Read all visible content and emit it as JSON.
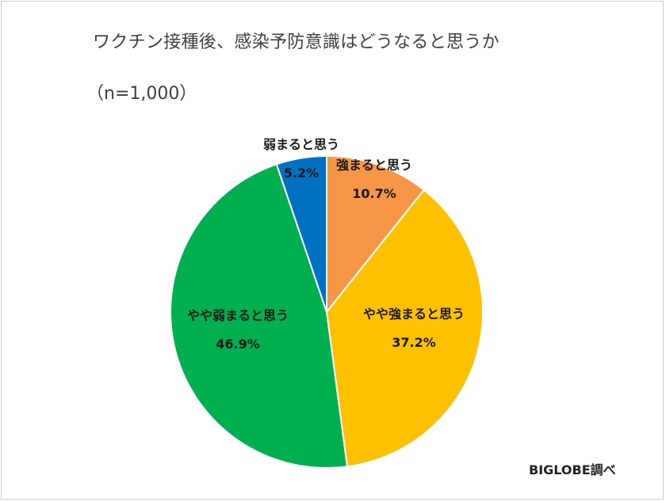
{
  "chart_data": {
    "type": "pie",
    "title": "ワクチン接種後、感染予防意識はどうなると思うか",
    "subtitle": "（n=1,000）",
    "slices": [
      {
        "label": "強まると思う",
        "value": 10.7,
        "value_label": "10.7%",
        "color": "#f79646"
      },
      {
        "label": "やや強まると思う",
        "value": 37.2,
        "value_label": "37.2%",
        "color": "#ffc000"
      },
      {
        "label": "やや弱まると思う",
        "value": 46.9,
        "value_label": "46.9%",
        "color": "#00b050"
      },
      {
        "label": "弱まると思う",
        "value": 5.2,
        "value_label": "5.2%",
        "color": "#0070c0"
      }
    ],
    "start_angle": "12 o'clock",
    "direction": "clockwise"
  },
  "credit": "BIGLOBE調べ"
}
